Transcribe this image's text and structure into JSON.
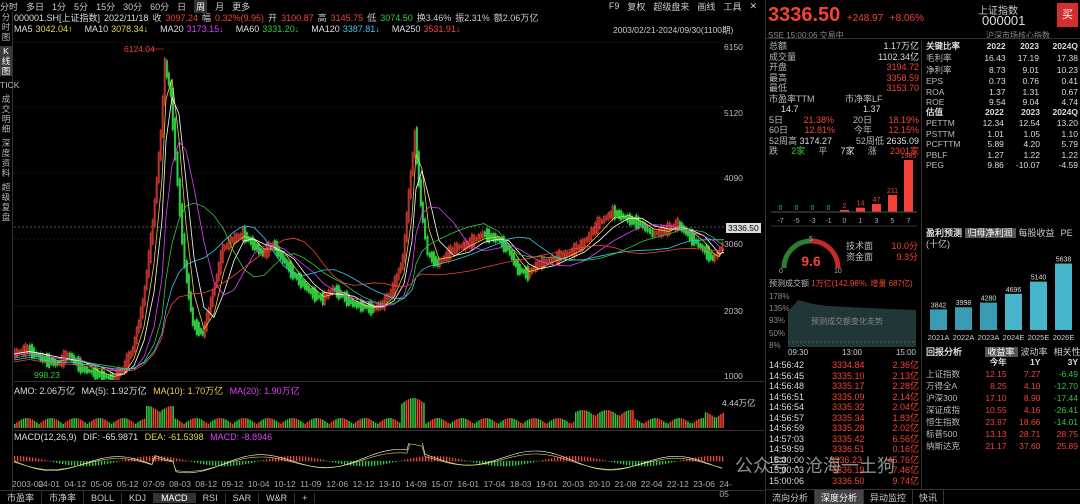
{
  "toolbar": {
    "periods": [
      "分时",
      "多日",
      "1分",
      "5分",
      "15分",
      "30分",
      "60分",
      "日",
      "周",
      "月",
      "更多"
    ],
    "selected_period": "周",
    "right_items": [
      "F9",
      "复权",
      "超级盘来",
      "画线",
      "工具"
    ]
  },
  "left_tabs": [
    "分时图",
    "K线图",
    "TICK",
    "成交明细",
    "深度资料",
    "超级复盘"
  ],
  "left_tabs_selected": "K线图",
  "info": {
    "code": "000001.SH[上证指数]",
    "date": "2022/11/18",
    "close_label": "收",
    "close": "3097.24",
    "chg_label": "幅",
    "chg": "0.32%(9.95)",
    "open_label": "开",
    "open": "3100.87",
    "high_label": "高",
    "high": "3145.75",
    "low_label": "低",
    "low": "3074.50",
    "turnover": "换3.46%",
    "amplitude": "振2.31%",
    "amount": "额2.06万亿"
  },
  "ma": [
    {
      "label": "MA5",
      "value": "3042.04↑",
      "color": "#e8d44d"
    },
    {
      "label": "MA10",
      "value": "3078.34↓",
      "color": "#e8d44d"
    },
    {
      "label": "MA20",
      "value": "3173.15↓",
      "color": "#e040fb"
    },
    {
      "label": "MA60",
      "value": "3331.20↓",
      "color": "#2ecc40"
    },
    {
      "label": "MA120",
      "value": "3387.81↓",
      "color": "#38c8f0"
    },
    {
      "label": "MA250",
      "value": "3531.91↓",
      "color": "#f44336"
    }
  ],
  "date_range": "2003/02/21-2024/09/30(1100期)",
  "y_axis": [
    "6150",
    "5120",
    "4090",
    "3336.50",
    "3060",
    "2030",
    "1000"
  ],
  "price_tag": "3336.50",
  "annotations": {
    "high": "6124.04",
    "low": "998.23"
  },
  "amo": {
    "label": "AMO: 2.06万亿",
    "ma5": "MA(5): 1.92万亿",
    "ma10": "MA(10): 1.70万亿",
    "ma20": "MA(20): 1.90万亿"
  },
  "amo_axis": "4.44万亿",
  "macd": {
    "label": "MACD(12,26,9)",
    "dif": "DIF: -65.9871",
    "dea": "DEA: -61.5398",
    "macd": "MACD: -8.8946"
  },
  "x_axis": [
    "2003-02",
    "04-01",
    "04-12",
    "05-06",
    "05-12",
    "07-09",
    "08-03",
    "08-12",
    "09-12",
    "10-04",
    "10-12",
    "11-09",
    "12-06",
    "12-12",
    "13-10",
    "14-09",
    "15-07",
    "16-01",
    "17-04",
    "18-03",
    "19-01",
    "20-03",
    "20-10",
    "21-08",
    "22-04",
    "22-12",
    "23-06",
    "24-05"
  ],
  "bottom_tabs": [
    "市盈率",
    "市净率",
    "BOLL",
    "KDJ",
    "MACD",
    "RSI",
    "SAR",
    "W&R",
    "+"
  ],
  "bottom_selected": "MACD",
  "quote": {
    "price": "3336.50",
    "change": "+248.97",
    "pct": "+8.06%",
    "name": "上证指数",
    "code": "000001",
    "buy": "买",
    "exchange": "SSE",
    "time": "15:00:06",
    "status": "交易中",
    "board": "沪深市场核心指数",
    "amount_label": "总额",
    "amount": "1.17万亿",
    "vol_label": "成交量",
    "vol": "1102.34亿",
    "open_label": "开盘",
    "open": "3194.72",
    "high_label": "最高",
    "high": "3358.59",
    "low_label": "最低",
    "low": "3153.70"
  },
  "stats": {
    "pe_label": "市盈率TTM",
    "pe": "14.7",
    "pb_label": "市净率LF",
    "pb": "1.37",
    "d5_label": "5日",
    "d5": "21.38%",
    "d20_label": "20日",
    "d20": "18.19%",
    "d60_label": "60日",
    "d60": "12.81%",
    "ytd_label": "今年",
    "ytd": "12.15%",
    "w52h_label": "52周高",
    "w52h": "3174.27",
    "w52l_label": "52周低",
    "w52l": "2635.09",
    "down_label": "跌",
    "down": "2家",
    "flat_label": "平",
    "flat": "7家",
    "up_label": "涨",
    "up": "2301家"
  },
  "dist": {
    "labels": [
      "-7",
      "-5",
      "-3",
      "-1",
      "0",
      "1",
      "3",
      "5",
      "7"
    ],
    "values": [
      "0",
      "0",
      "0",
      "0",
      "2",
      "14",
      "47",
      "211",
      "1985"
    ],
    "top": "1985"
  },
  "score": {
    "value": "9.6",
    "scale_low": "0",
    "scale_mid": "5",
    "scale_high": "10",
    "tech_label": "技术面",
    "tech": "10.0分",
    "fund_label": "资金面",
    "fund": "9.3分"
  },
  "forecast": {
    "label": "预测成交额",
    "value": "1万亿(142.98%, 增量 687亿)",
    "placeholder": "预测成交额变化走势",
    "axis": [
      "178%",
      "135%",
      "93%",
      "50%",
      "8%"
    ],
    "times": [
      "09:30",
      "13:00",
      "15:00"
    ]
  },
  "ticks": [
    {
      "t": "14:56:42",
      "p": "3334.84",
      "v": "2.36亿"
    },
    {
      "t": "14:56:45",
      "p": "3335.10",
      "v": "2.13亿"
    },
    {
      "t": "14:56:48",
      "p": "3335.17",
      "v": "2.28亿"
    },
    {
      "t": "14:56:51",
      "p": "3335.09",
      "v": "2.14亿"
    },
    {
      "t": "14:56:54",
      "p": "3335.32",
      "v": "2.04亿"
    },
    {
      "t": "14:56:57",
      "p": "3335.34",
      "v": "1.83亿"
    },
    {
      "t": "14:56:59",
      "p": "3335.28",
      "v": "2.02亿"
    },
    {
      "t": "14:57:03",
      "p": "3335.42",
      "v": "6.56亿"
    },
    {
      "t": "14:59:59",
      "p": "3336.51",
      "v": "0.16亿"
    },
    {
      "t": "15:00:00",
      "p": "3336.23",
      "v": "45.76亿"
    },
    {
      "t": "15:00:03",
      "p": "3336.19",
      "v": "7.46亿"
    },
    {
      "t": "15:00:06",
      "p": "3336.50",
      "v": "9.74亿"
    }
  ],
  "key_ratios": {
    "title": "关键比率",
    "years": [
      "2022",
      "2023",
      "2024Q"
    ],
    "rows": [
      {
        "k": "毛利率",
        "v": [
          "16.43",
          "17.19",
          "17.38"
        ]
      },
      {
        "k": "净利率",
        "v": [
          "8.73",
          "9.01",
          "10.23"
        ]
      },
      {
        "k": "EPS",
        "v": [
          "0.73",
          "0.76",
          "0.41"
        ]
      },
      {
        "k": "ROA",
        "v": [
          "1.37",
          "1.31",
          "0.67"
        ]
      },
      {
        "k": "ROE",
        "v": [
          "9.54",
          "9.04",
          "4.74"
        ]
      }
    ]
  },
  "valuation": {
    "title": "估值",
    "years": [
      "2022",
      "2023",
      "2024Q"
    ],
    "rows": [
      {
        "k": "PETTM",
        "v": [
          "12.34",
          "12.54",
          "13.20"
        ]
      },
      {
        "k": "PSTTM",
        "v": [
          "1.01",
          "1.05",
          "1.10"
        ]
      },
      {
        "k": "PCFTTM",
        "v": [
          "5.89",
          "4.20",
          "5.79"
        ]
      },
      {
        "k": "PBLF",
        "v": [
          "1.27",
          "1.22",
          "1.22"
        ]
      },
      {
        "k": "PEG",
        "v": [
          "9.86",
          "-10.07",
          "-4.59"
        ]
      }
    ]
  },
  "profit": {
    "title": "盈利预测",
    "unit": "(十亿)",
    "tabs": [
      "归母净利润",
      "每股收益",
      "PE"
    ],
    "selected": "归母净利润",
    "bars": [
      {
        "year": "2021A",
        "value": "3842"
      },
      {
        "year": "2022A",
        "value": "3998"
      },
      {
        "year": "2023A",
        "value": "4280"
      },
      {
        "year": "2024E",
        "value": "4696"
      },
      {
        "year": "2025E",
        "value": "5140"
      },
      {
        "year": "2026E",
        "value": "5638"
      }
    ]
  },
  "backtest": {
    "title": "回报分析",
    "tabs": [
      "收益率",
      "波动率",
      "相关性"
    ],
    "selected": "收益率",
    "cols": [
      "今年",
      "1Y",
      "3Y"
    ],
    "rows": [
      {
        "k": "上证指数",
        "v": [
          "12.15",
          "7.27",
          "-6.49"
        ]
      },
      {
        "k": "万得全A",
        "v": [
          "8.25",
          "4.10",
          "-12.70"
        ]
      },
      {
        "k": "沪深300",
        "v": [
          "17.10",
          "8.90",
          "-17.44"
        ]
      },
      {
        "k": "深证成指",
        "v": [
          "10.55",
          "4.16",
          "-26.41"
        ]
      },
      {
        "k": "恒生指数",
        "v": [
          "23.97",
          "18.66",
          "-14.01"
        ]
      },
      {
        "k": "标普500",
        "v": [
          "13.13",
          "28.71",
          "28.75"
        ]
      },
      {
        "k": "纳斯达克",
        "v": [
          "21.17",
          "37.60",
          "25.89"
        ]
      }
    ]
  },
  "rp_bottom_tabs": [
    "流向分析",
    "深度分析",
    "异动监控",
    "快讯"
  ],
  "rp_bottom_selected": "深度分析",
  "watermark": "公众号 · 沧海一土狗",
  "colors": {
    "up": "#f44336",
    "down": "#2ecc40",
    "bg": "#000000"
  }
}
